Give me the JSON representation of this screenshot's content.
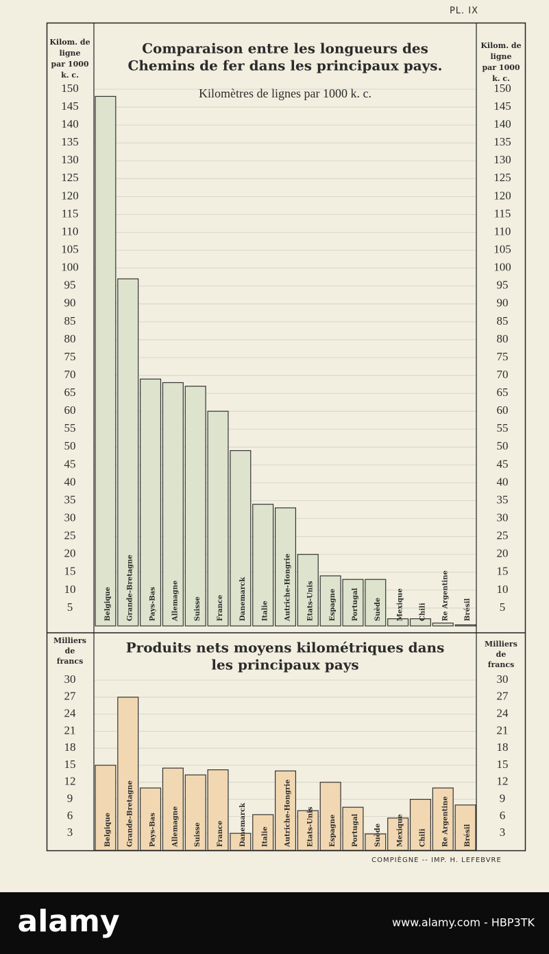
{
  "plate": "PL. IX",
  "imprint": "COMPIÈGNE -- IMP. H. LEFEBVRE",
  "watermark": {
    "logo": "alamy",
    "id": "www.alamy.com - HBP3TK"
  },
  "chart_data": [
    {
      "type": "bar",
      "title": [
        "Comparaison entre les longueurs des",
        "Chemins de fer dans les principaux pays."
      ],
      "subtitle": "Kilomètres de lignes par 1000 k. c.",
      "ylabel": [
        "Kilom. de",
        "ligne",
        "par 1000",
        "k. c."
      ],
      "categories": [
        "Belgique",
        "Grande-Bretagne",
        "Pays-Bas",
        "Allemagne",
        "Suisse",
        "France",
        "Danemarck",
        "Italie",
        "Autriche-Hongrie",
        "Etats-Unis",
        "Espagne",
        "Portugal",
        "Suède",
        "Mexique",
        "Chili",
        "Re Argentine",
        "Brésil"
      ],
      "values": [
        148,
        97,
        69,
        68,
        67,
        60,
        49,
        34,
        33,
        20,
        14,
        13,
        13,
        2,
        2,
        0.8,
        0.3
      ],
      "color": "#dde3cd",
      "ylim": [
        0,
        150
      ],
      "yticks": [
        5,
        10,
        15,
        20,
        25,
        30,
        35,
        40,
        45,
        50,
        55,
        60,
        65,
        70,
        75,
        80,
        85,
        90,
        95,
        100,
        105,
        110,
        115,
        120,
        125,
        130,
        135,
        140,
        145,
        150
      ],
      "grid": true
    },
    {
      "type": "bar",
      "title": [
        "Produits nets moyens kilométriques dans",
        "les principaux pays"
      ],
      "ylabel": [
        "Milliers",
        "de",
        "francs"
      ],
      "categories": [
        "Belgique",
        "Grande-Bretagne",
        "Pays-Bas",
        "Allemagne",
        "Suisse",
        "France",
        "Danemarck",
        "Italie",
        "Autriche-Hongrie",
        "Etats-Unis",
        "Espagne",
        "Portugal",
        "Suède",
        "Mexique",
        "Chili",
        "Re Argentine",
        "Brésil"
      ],
      "values": [
        15,
        27,
        11,
        14.5,
        13.3,
        14.2,
        3,
        6.3,
        14,
        7,
        12,
        7.6,
        2.9,
        5.7,
        9,
        11,
        8
      ],
      "color": "#f2d8b2",
      "ylim": [
        0,
        30
      ],
      "yticks": [
        3,
        6,
        9,
        12,
        15,
        18,
        21,
        24,
        27,
        30
      ],
      "grid": true
    }
  ]
}
